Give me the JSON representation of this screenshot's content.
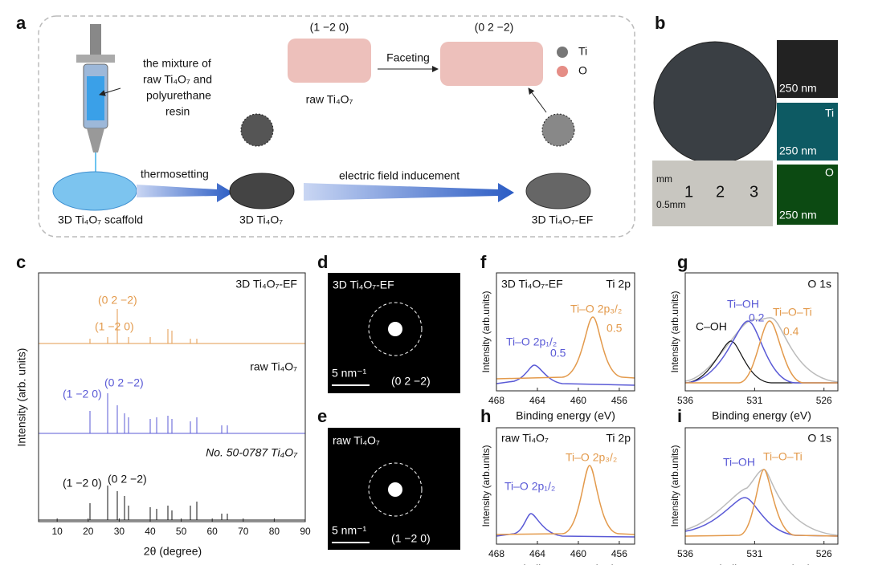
{
  "panel_a": {
    "label": "a",
    "hkl_left": "(1 −2 0)",
    "hkl_right": "(0 2 −2)",
    "faceting": "Faceting",
    "legend": [
      "Ti",
      "O"
    ],
    "raw": "raw Ti₄O₇",
    "mixture": [
      "the mixture of",
      "raw Ti₄O₇ and",
      "polyurethane",
      "resin"
    ],
    "thermosetting": "thermosetting",
    "electric": "electric field inducement",
    "scaffold": "3D Ti₄O₇ scaffold",
    "printed": "3D Ti₄O₇",
    "ef": "3D Ti₄O₇-EF"
  },
  "panel_b": {
    "label": "b",
    "ruler": [
      "1",
      "2",
      "3"
    ],
    "ruler_unit": "mm",
    "ruler_minor": "0.5mm",
    "scale_bars": [
      "250 nm",
      "250 nm",
      "250 nm"
    ],
    "elements": [
      "Ti",
      "O"
    ]
  },
  "panel_c": {
    "label": "c",
    "x_label": "2θ (degree)",
    "y_label": "Intensity (arb. units)",
    "xlim": [
      4,
      90
    ],
    "xticks": [
      10,
      20,
      30,
      40,
      50,
      60,
      70,
      80,
      90
    ],
    "traces": [
      {
        "name": "3D Ti₄O₇-EF",
        "peaks": [
          "(1 −2 0)",
          "(0 2 −2)"
        ]
      },
      {
        "name": "raw Ti₄O₇",
        "peaks": [
          "(1 −2 0)",
          "(0 2 −2)"
        ]
      },
      {
        "name": "No. 50-0787 Ti₄O₇",
        "peaks": [
          "(1 −2 0)",
          "(0 2 −2)"
        ]
      }
    ]
  },
  "panel_d": {
    "label": "d",
    "title": "3D Ti₄O₇-EF",
    "scale": "5 nm⁻¹",
    "hkl": "(0 2 −2)"
  },
  "panel_e": {
    "label": "e",
    "title": "raw Ti₄O₇",
    "scale": "5 nm⁻¹",
    "hkl": "(1 −2 0)"
  },
  "panel_f": {
    "label": "f",
    "title": "3D Ti₄O₇-EF",
    "core": "Ti 2p",
    "x_label": "Binding energy (eV)",
    "y_label": "Intensity (arb.units)",
    "xlim": [
      468,
      454.5
    ],
    "xticks": [
      468,
      464,
      460,
      456
    ],
    "peaks": [
      "Ti–O 2p₁/₂",
      "Ti–O 2p₃/₂"
    ],
    "shifts": [
      "0.5",
      "0.5"
    ]
  },
  "panel_g": {
    "label": "g",
    "core": "O 1s",
    "x_label": "Binding energy (eV)",
    "y_label": "Intensity (arb.units)",
    "xlim": [
      536,
      525
    ],
    "xticks": [
      536,
      531,
      526
    ],
    "peaks": [
      "C–OH",
      "Ti–OH",
      "Ti–O–Ti"
    ],
    "shifts": [
      "0.2",
      "0.4"
    ]
  },
  "panel_h": {
    "label": "h",
    "title": "raw Ti₄O₇",
    "core": "Ti 2p",
    "x_label": "Binding energy (eV)",
    "y_label": "Intensity (arb.units)",
    "xlim": [
      468,
      454.5
    ],
    "xticks": [
      468,
      464,
      460,
      456
    ],
    "peaks": [
      "Ti–O 2p₁/₂",
      "Ti–O 2p₃/₂"
    ]
  },
  "panel_i": {
    "label": "i",
    "core": "O 1s",
    "x_label": "Binding energy (eV)",
    "y_label": "Intensity (arb.units)",
    "xlim": [
      536,
      525
    ],
    "xticks": [
      536,
      531,
      526
    ],
    "peaks": [
      "Ti–OH",
      "Ti–O–Ti"
    ]
  }
}
